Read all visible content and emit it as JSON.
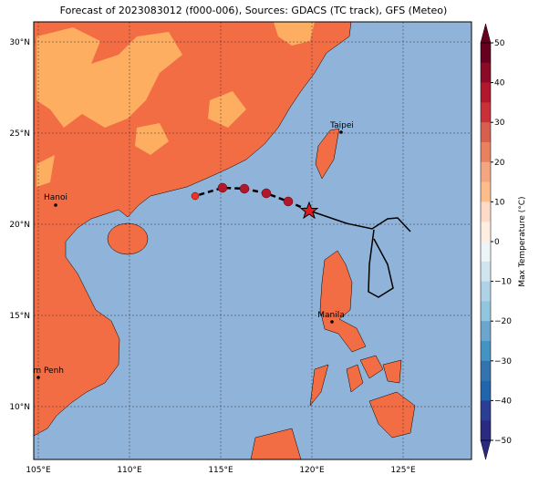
{
  "title": "Forecast of 2023083012 (f000-006), Sources: GDACS (TC track), GFS (Meteo)",
  "map": {
    "x_tick_labels": [
      "105°E",
      "110°E",
      "115°E",
      "120°E",
      "125°E"
    ],
    "y_tick_labels": [
      "30°N",
      "25°N",
      "20°N",
      "15°N",
      "10°N"
    ],
    "cities": [
      "Taipei",
      "Hanoi",
      "Manila",
      "Phnom Penh"
    ]
  },
  "colorbar": {
    "label": "Max Temperature (°C)",
    "ticks": [
      50,
      40,
      30,
      20,
      10,
      0,
      {
        "value": -10,
        "label": "−10"
      },
      {
        "value": -20,
        "label": "−20"
      },
      {
        "value": -30,
        "label": "−30"
      },
      {
        "value": -40,
        "label": "−40"
      },
      {
        "value": -50,
        "label": "−50"
      }
    ],
    "colors": [
      "#67001f",
      "#8b0a26",
      "#b2182b",
      "#c8313a",
      "#d6604d",
      "#e9805e",
      "#f4a582",
      "#fbbe8a",
      "#fddbc7",
      "#feeee2",
      "#eef5f9",
      "#d1e5f0",
      "#b0d2e7",
      "#92c5de",
      "#6aa6cd",
      "#4393c3",
      "#3474ae",
      "#2166ac",
      "#2a3e96",
      "#2a2a80"
    ]
  }
}
